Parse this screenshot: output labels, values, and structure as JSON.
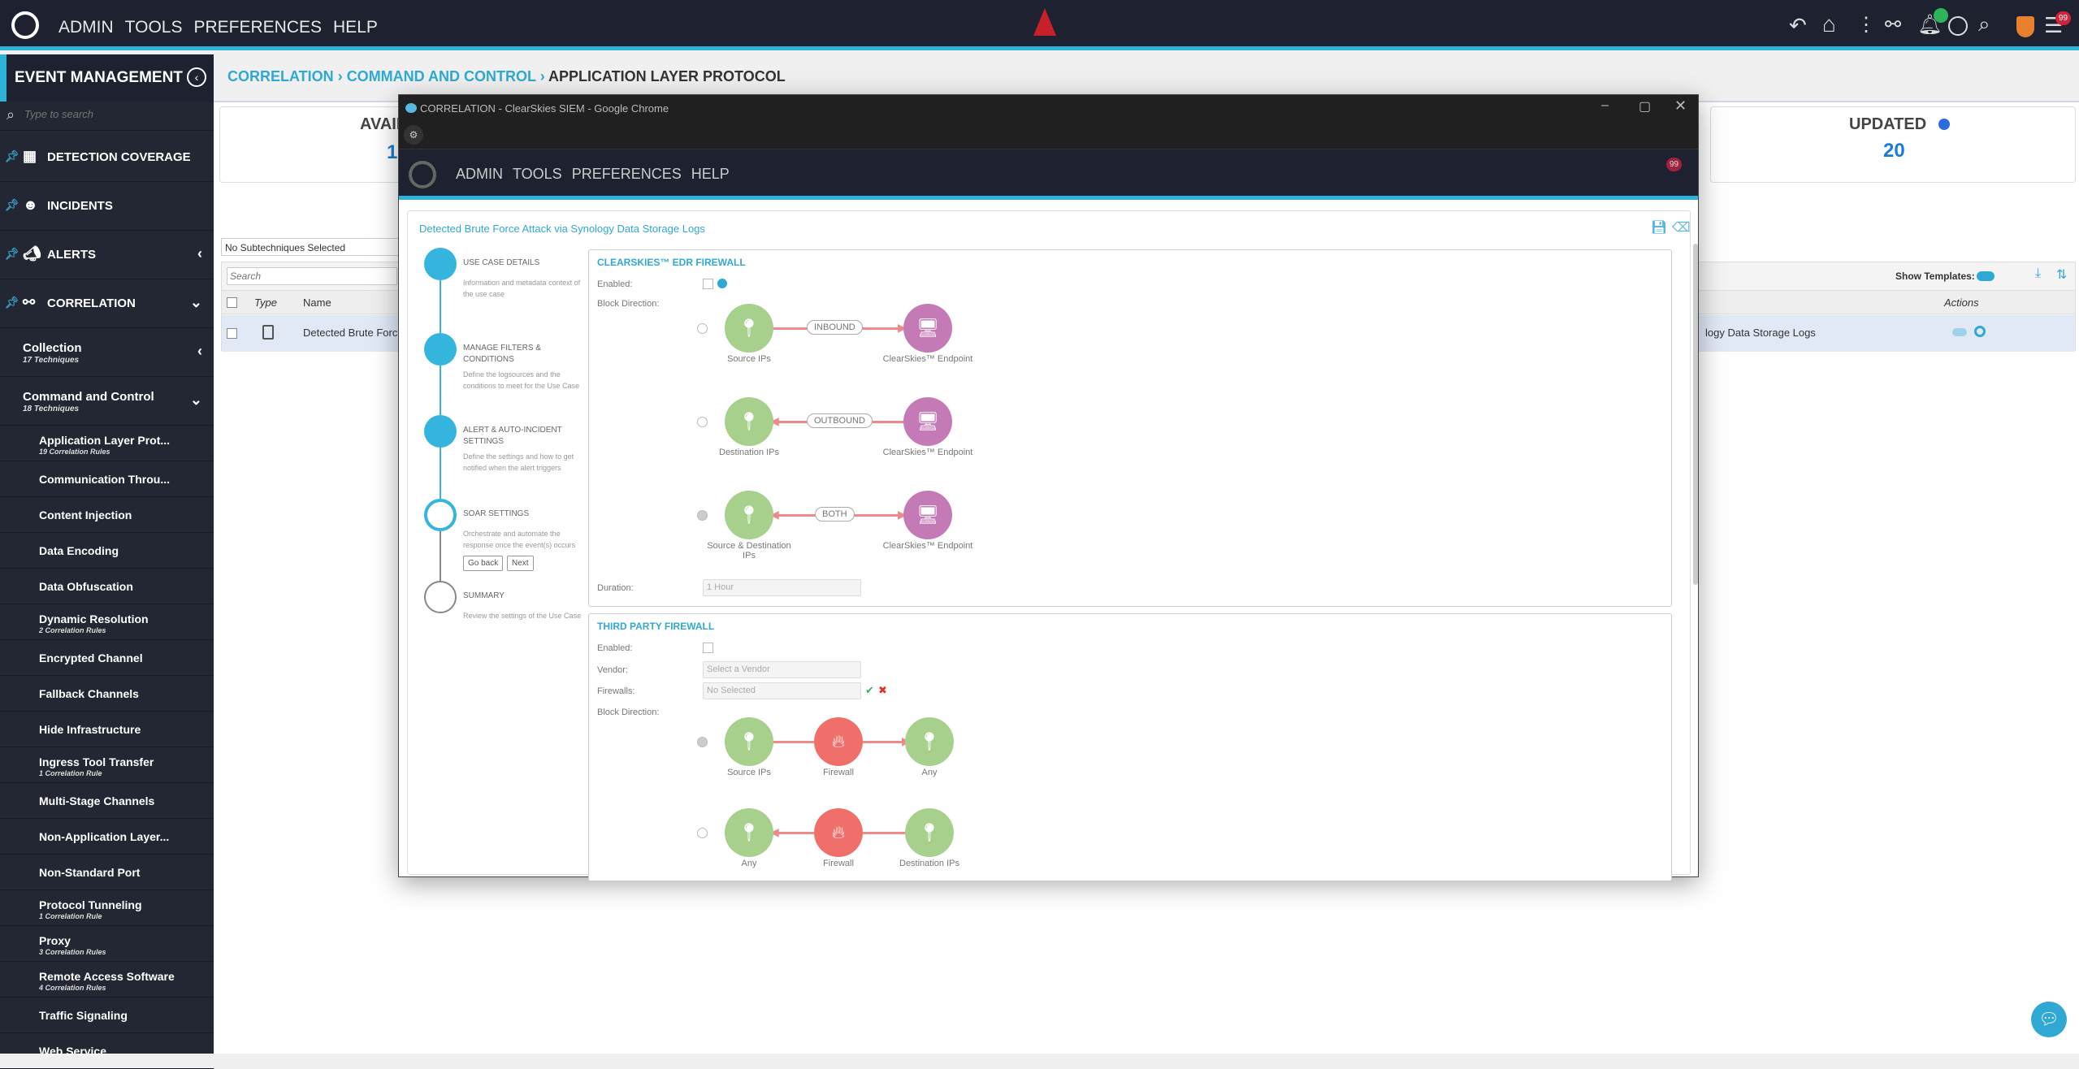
{
  "topbar": {
    "nav": [
      "ADMIN",
      "TOOLS",
      "PREFERENCES",
      "HELP"
    ],
    "badge": "99"
  },
  "sidebar": {
    "title": "EVENT MANAGEMENT",
    "search_placeholder": "Type to search",
    "items": [
      {
        "label": "DETECTION COVERAGE"
      },
      {
        "label": "INCIDENTS"
      },
      {
        "label": "ALERTS"
      },
      {
        "label": "CORRELATION"
      }
    ],
    "collection": {
      "label": "Collection",
      "sub": "17 Techniques"
    },
    "cnc": {
      "label": "Command and Control",
      "sub": "18 Techniques"
    },
    "techniques": [
      {
        "label": "Application Layer Prot...",
        "sub": "19 Correlation Rules"
      },
      {
        "label": "Communication Throu..."
      },
      {
        "label": "Content Injection"
      },
      {
        "label": "Data Encoding"
      },
      {
        "label": "Data Obfuscation"
      },
      {
        "label": "Dynamic Resolution",
        "sub": "2 Correlation Rules"
      },
      {
        "label": "Encrypted Channel"
      },
      {
        "label": "Fallback Channels"
      },
      {
        "label": "Hide Infrastructure"
      },
      {
        "label": "Ingress Tool Transfer",
        "sub": "1 Correlation Rule"
      },
      {
        "label": "Multi-Stage Channels"
      },
      {
        "label": "Non-Application Layer..."
      },
      {
        "label": "Non-Standard Port"
      },
      {
        "label": "Protocol Tunneling",
        "sub": "1 Correlation Rule"
      },
      {
        "label": "Proxy",
        "sub": "3 Correlation Rules"
      },
      {
        "label": "Remote Access Software",
        "sub": "4 Correlation Rules"
      },
      {
        "label": "Traffic Signaling"
      },
      {
        "label": "Web Service"
      }
    ]
  },
  "breadcrumb": [
    "CORRELATION",
    "COMMAND AND CONTROL",
    "APPLICATION LAYER PROTOCOL"
  ],
  "cards": {
    "available_label": "AVAIL",
    "available_value": "1",
    "updated_label": "UPDATED",
    "updated_value": "20"
  },
  "filter": {
    "subtechniques": "No Subtechniques Selected",
    "search_placeholder": "Search",
    "show_templates": "Show Templates:"
  },
  "table": {
    "headers": [
      "Type",
      "Name",
      "Actions"
    ],
    "row": {
      "name": "Detected Brute Force",
      "name_tail": "logy Data Storage Logs"
    }
  },
  "modal": {
    "window_title": "CORRELATION - ClearSkies SIEM - Google Chrome",
    "title": "Detected Brute Force Attack via Synology Data Storage Logs",
    "steps": [
      {
        "title": "USE CASE DETAILS",
        "desc": "Information and metadata context of the use case"
      },
      {
        "title": "MANAGE FILTERS & CONDITIONS",
        "desc": "Define the logsources and the conditions to meet for the Use Case"
      },
      {
        "title": "ALERT & AUTO-INCIDENT SETTINGS",
        "desc": "Define the settings and how to get notified when the alert triggers"
      },
      {
        "title": "SOAR SETTINGS",
        "desc": "Orchestrate and automate the response once the event(s) occurs"
      },
      {
        "title": "SUMMARY",
        "desc": "Review the settings of the Use Case"
      }
    ],
    "go_back": "Go back",
    "next": "Next",
    "edr": {
      "title": "CLEARSKIES™ EDR FIREWALL",
      "enabled": "Enabled:",
      "block_direction": "Block Direction:",
      "duration": "Duration:",
      "duration_value": "1 Hour",
      "rows": [
        {
          "left": "Source IPs",
          "pill": "INBOUND",
          "right": "ClearSkies™ Endpoint",
          "dir": "right",
          "selected": false
        },
        {
          "left": "Destination IPs",
          "pill": "OUTBOUND",
          "right": "ClearSkies™ Endpoint",
          "dir": "left",
          "selected": false
        },
        {
          "left": "Source & Destination IPs",
          "pill": "BOTH",
          "right": "ClearSkies™ Endpoint",
          "dir": "both",
          "selected": true
        }
      ]
    },
    "third": {
      "title": "THIRD PARTY FIREWALL",
      "enabled": "Enabled:",
      "vendor": "Vendor:",
      "vendor_placeholder": "Select a Vendor",
      "firewalls": "Firewalls:",
      "firewalls_value": "No Selected",
      "block_direction": "Block Direction:",
      "rows": [
        {
          "a": "Source IPs",
          "b": "Firewall",
          "c": "Any",
          "dir": "right",
          "selected": true
        },
        {
          "a": "Any",
          "b": "Firewall",
          "c": "Destination IPs",
          "dir": "left",
          "selected": false
        }
      ]
    }
  }
}
